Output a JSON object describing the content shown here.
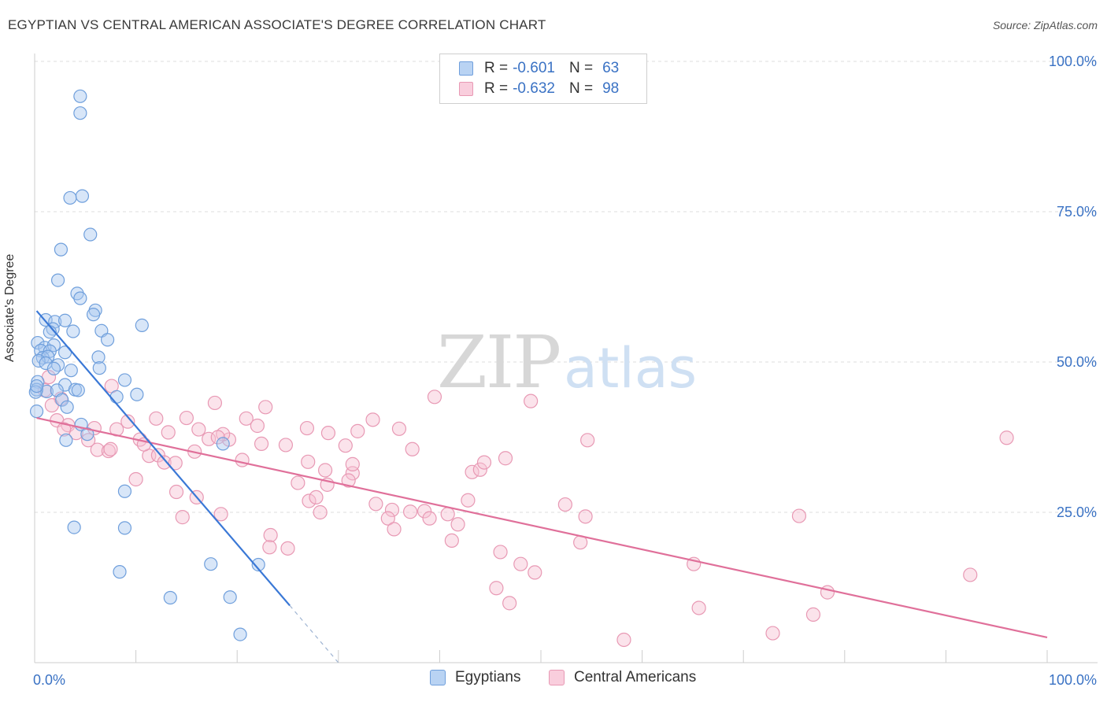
{
  "header": {
    "title": "EGYPTIAN VS CENTRAL AMERICAN ASSOCIATE'S DEGREE CORRELATION CHART",
    "source": "Source: ZipAtlas.com"
  },
  "watermark": {
    "zip": "ZIP",
    "atlas": "atlas"
  },
  "legend_top": {
    "rows": [
      {
        "r_label": "R =",
        "r_value": "-0.601",
        "n_label": "N =",
        "n_value": "63"
      },
      {
        "r_label": "R =",
        "r_value": "-0.632",
        "n_label": "N =",
        "n_value": "98"
      }
    ]
  },
  "legend_bottom": {
    "items": [
      "Egyptians",
      "Central Americans"
    ]
  },
  "colors": {
    "blue_fill": "#a9c8ef",
    "blue_stroke": "#6f9fdc",
    "blue_line": "#3a78d6",
    "pink_fill": "#f6c0d2",
    "pink_stroke": "#e899b4",
    "pink_line": "#e0709a",
    "axis_text": "#3a72c4",
    "grid": "#dddddd"
  },
  "chart_data": {
    "type": "scatter",
    "title": "EGYPTIAN VS CENTRAL AMERICAN ASSOCIATE'S DEGREE CORRELATION CHART",
    "xlabel": "",
    "ylabel": "Associate's Degree",
    "xlim": [
      0,
      100
    ],
    "ylim": [
      0,
      100
    ],
    "x_tick_labels": [
      "0.0%",
      "100.0%"
    ],
    "y_tick_labels": [
      "100.0%",
      "75.0%",
      "50.0%",
      "25.0%"
    ],
    "y_ticks": [
      100,
      75,
      50,
      25
    ],
    "grid": true,
    "legend_position": "top-center",
    "series": [
      {
        "name": "Egyptians",
        "r": -0.601,
        "n": 63,
        "trend": {
          "x0": 0.2,
          "y0": 58.5,
          "x1": 25.2,
          "y1": 9.5,
          "dash_to_x": 30,
          "dash_to_y": 0
        },
        "points": [
          [
            4.5,
            94.2
          ],
          [
            4.5,
            91.4
          ],
          [
            3.5,
            77.3
          ],
          [
            4.7,
            77.6
          ],
          [
            5.5,
            71.2
          ],
          [
            2.6,
            68.7
          ],
          [
            2.3,
            63.6
          ],
          [
            4.2,
            61.4
          ],
          [
            4.5,
            60.6
          ],
          [
            6.0,
            58.6
          ],
          [
            5.8,
            57.9
          ],
          [
            1.1,
            57.0
          ],
          [
            2.0,
            56.7
          ],
          [
            3.0,
            56.9
          ],
          [
            10.6,
            56.1
          ],
          [
            1.8,
            55.5
          ],
          [
            1.5,
            55.0
          ],
          [
            3.8,
            55.1
          ],
          [
            6.6,
            55.2
          ],
          [
            7.2,
            53.7
          ],
          [
            0.3,
            53.2
          ],
          [
            1.0,
            52.4
          ],
          [
            1.9,
            52.8
          ],
          [
            0.6,
            51.9
          ],
          [
            1.5,
            51.8
          ],
          [
            3.0,
            51.6
          ],
          [
            0.8,
            50.7
          ],
          [
            1.3,
            50.9
          ],
          [
            6.3,
            50.8
          ],
          [
            0.4,
            50.2
          ],
          [
            1.1,
            49.8
          ],
          [
            2.3,
            49.5
          ],
          [
            1.9,
            48.9
          ],
          [
            3.6,
            48.6
          ],
          [
            6.4,
            49.0
          ],
          [
            8.9,
            47.0
          ],
          [
            0.3,
            46.7
          ],
          [
            3.0,
            46.2
          ],
          [
            0.2,
            45.4
          ],
          [
            1.2,
            45.1
          ],
          [
            2.2,
            45.3
          ],
          [
            4.0,
            45.4
          ],
          [
            4.3,
            45.3
          ],
          [
            8.1,
            44.2
          ],
          [
            10.1,
            44.6
          ],
          [
            2.7,
            43.7
          ],
          [
            3.2,
            42.5
          ],
          [
            0.2,
            41.8
          ],
          [
            4.6,
            39.6
          ],
          [
            5.2,
            38.0
          ],
          [
            3.1,
            37.0
          ],
          [
            18.6,
            36.4
          ],
          [
            8.9,
            28.5
          ],
          [
            3.9,
            22.5
          ],
          [
            8.9,
            22.4
          ],
          [
            17.4,
            16.4
          ],
          [
            8.4,
            15.1
          ],
          [
            22.1,
            16.3
          ],
          [
            13.4,
            10.8
          ],
          [
            19.3,
            10.9
          ],
          [
            20.3,
            4.7
          ],
          [
            0.1,
            45.0
          ],
          [
            0.2,
            46.0
          ]
        ]
      },
      {
        "name": "Central Americans",
        "r": -0.632,
        "n": 98,
        "trend": {
          "x0": 0.2,
          "y0": 40.7,
          "x1": 100,
          "y1": 4.2
        },
        "points": [
          [
            1.4,
            47.5
          ],
          [
            1.0,
            45.3
          ],
          [
            2.6,
            43.9
          ],
          [
            1.7,
            42.8
          ],
          [
            7.6,
            46.0
          ],
          [
            15.0,
            40.7
          ],
          [
            12.0,
            40.6
          ],
          [
            17.2,
            37.2
          ],
          [
            16.2,
            38.8
          ],
          [
            20.9,
            40.6
          ],
          [
            19.2,
            37.1
          ],
          [
            18.6,
            38.0
          ],
          [
            20.5,
            33.7
          ],
          [
            22.4,
            36.4
          ],
          [
            22.0,
            39.4
          ],
          [
            24.8,
            36.2
          ],
          [
            27.0,
            33.4
          ],
          [
            29.0,
            38.2
          ],
          [
            30.7,
            36.1
          ],
          [
            31.4,
            31.5
          ],
          [
            28.7,
            32.0
          ],
          [
            28.2,
            25.0
          ],
          [
            27.1,
            26.9
          ],
          [
            27.8,
            27.5
          ],
          [
            28.9,
            29.6
          ],
          [
            31.4,
            33.0
          ],
          [
            31.9,
            38.5
          ],
          [
            33.7,
            26.4
          ],
          [
            35.3,
            25.4
          ],
          [
            34.9,
            24.0
          ],
          [
            35.5,
            22.2
          ],
          [
            37.1,
            25.1
          ],
          [
            37.3,
            35.5
          ],
          [
            38.5,
            25.2
          ],
          [
            39.0,
            24.0
          ],
          [
            40.8,
            24.7
          ],
          [
            41.8,
            23.0
          ],
          [
            41.2,
            20.3
          ],
          [
            43.2,
            31.7
          ],
          [
            42.8,
            27.0
          ],
          [
            44.0,
            32.1
          ],
          [
            44.4,
            33.3
          ],
          [
            46.5,
            34.0
          ],
          [
            46.0,
            18.4
          ],
          [
            48.0,
            16.4
          ],
          [
            49.4,
            15.0
          ],
          [
            45.6,
            12.4
          ],
          [
            46.9,
            9.9
          ],
          [
            49.0,
            43.5
          ],
          [
            52.4,
            26.3
          ],
          [
            53.9,
            20.0
          ],
          [
            54.4,
            24.3
          ],
          [
            54.6,
            37.0
          ],
          [
            65.6,
            9.1
          ],
          [
            65.1,
            16.4
          ],
          [
            58.2,
            3.8
          ],
          [
            72.9,
            4.9
          ],
          [
            75.5,
            24.4
          ],
          [
            76.9,
            8.0
          ],
          [
            78.3,
            11.7
          ],
          [
            92.4,
            14.6
          ],
          [
            96.0,
            37.4
          ],
          [
            2.2,
            40.3
          ],
          [
            3.3,
            39.5
          ],
          [
            4.1,
            38.2
          ],
          [
            5.9,
            39.0
          ],
          [
            5.3,
            37.0
          ],
          [
            6.2,
            35.4
          ],
          [
            7.3,
            35.2
          ],
          [
            8.1,
            38.8
          ],
          [
            9.2,
            40.1
          ],
          [
            10.4,
            37.1
          ],
          [
            11.3,
            34.4
          ],
          [
            12.2,
            34.5
          ],
          [
            12.8,
            33.3
          ],
          [
            13.9,
            33.2
          ],
          [
            10.0,
            30.5
          ],
          [
            14.0,
            28.4
          ],
          [
            14.6,
            24.2
          ],
          [
            16.0,
            27.5
          ],
          [
            18.4,
            24.7
          ],
          [
            18.1,
            37.5
          ],
          [
            22.8,
            42.5
          ],
          [
            26.0,
            29.9
          ],
          [
            23.3,
            21.2
          ],
          [
            25.0,
            19.0
          ],
          [
            23.2,
            19.2
          ],
          [
            31.0,
            30.3
          ],
          [
            33.4,
            40.4
          ],
          [
            36.0,
            38.9
          ],
          [
            39.5,
            44.2
          ],
          [
            7.5,
            35.5
          ],
          [
            2.9,
            38.8
          ],
          [
            17.8,
            43.2
          ],
          [
            13.2,
            38.3
          ],
          [
            10.8,
            36.3
          ],
          [
            26.9,
            39.0
          ],
          [
            15.8,
            35.1
          ]
        ]
      }
    ]
  }
}
